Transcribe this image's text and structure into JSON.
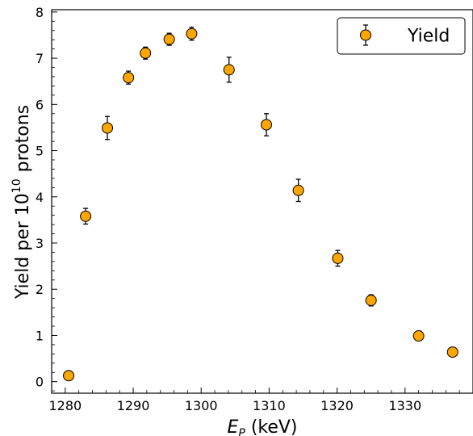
{
  "chart_data": {
    "type": "scatter",
    "title": "",
    "xlabel": {
      "main": "E",
      "sub": "P",
      "unit": "(keV)"
    },
    "ylabel": {
      "main": "Yield per 10",
      "sup": "10",
      "unit": "protons"
    },
    "xlim": [
      1278,
      1340
    ],
    "ylim": [
      -0.25,
      8.05
    ],
    "xticks": [
      1280,
      1290,
      1300,
      1310,
      1320,
      1330
    ],
    "yticks": [
      0,
      1,
      2,
      3,
      4,
      5,
      6,
      7,
      8
    ],
    "grid": false,
    "legend": {
      "placement": "top-right"
    },
    "marker_color": "#ffa500",
    "series": [
      {
        "name": "Yield",
        "x": [
          1280.5,
          1283.0,
          1286.2,
          1289.3,
          1291.8,
          1295.3,
          1298.6,
          1304.1,
          1309.6,
          1314.3,
          1320.1,
          1325.0,
          1332.0,
          1337.0
        ],
        "y": [
          0.13,
          3.58,
          5.49,
          6.58,
          7.11,
          7.41,
          7.53,
          6.75,
          5.56,
          4.14,
          2.67,
          1.76,
          0.99,
          0.64
        ],
        "yerr": [
          0.03,
          0.17,
          0.25,
          0.14,
          0.13,
          0.13,
          0.14,
          0.27,
          0.24,
          0.24,
          0.17,
          0.12,
          0.05,
          0.04
        ]
      }
    ]
  }
}
